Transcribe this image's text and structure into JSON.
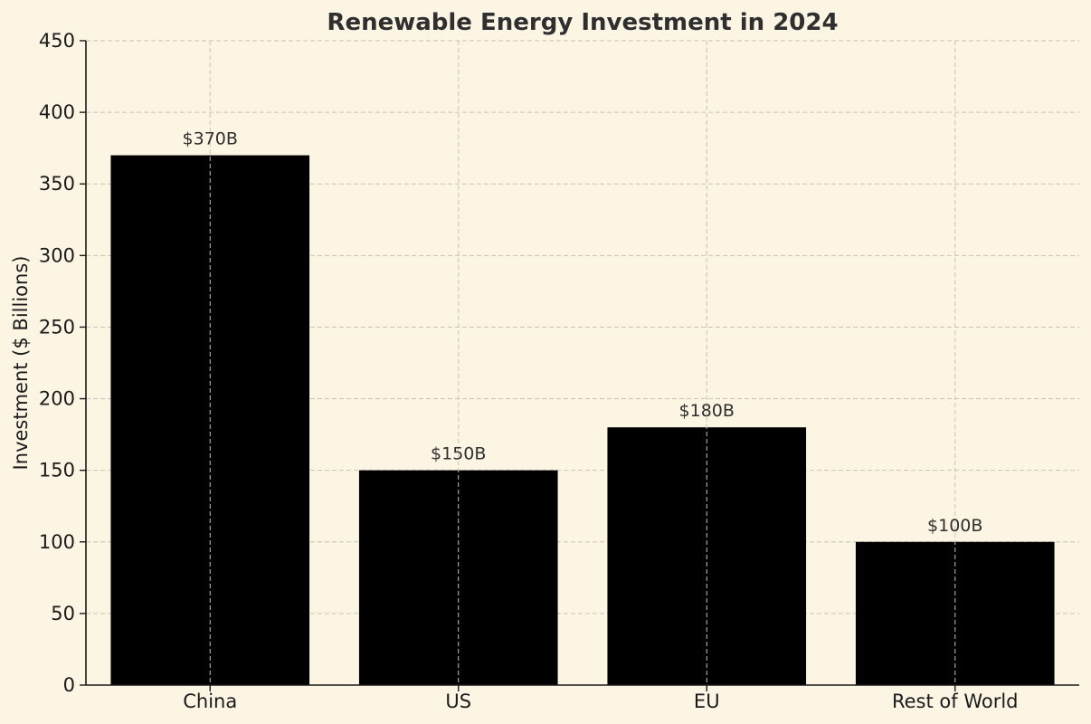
{
  "chart_data": {
    "type": "bar",
    "title": "Renewable Energy Investment in 2024",
    "xlabel": "",
    "ylabel": "Investment ($ Billions)",
    "categories": [
      "China",
      "US",
      "EU",
      "Rest of World"
    ],
    "values": [
      370,
      150,
      180,
      100
    ],
    "data_labels": [
      "$370B",
      "$150B",
      "$180B",
      "$100B"
    ],
    "ylim": [
      0,
      450
    ],
    "yticks": [
      0,
      50,
      100,
      150,
      200,
      250,
      300,
      350,
      400,
      450
    ],
    "ytick_labels": [
      "0",
      "50",
      "100",
      "150",
      "200",
      "250",
      "300",
      "350",
      "400",
      "450"
    ],
    "grid": true,
    "legend": "none",
    "bar_color": "#000000",
    "background_color": "#fcf5e4"
  }
}
